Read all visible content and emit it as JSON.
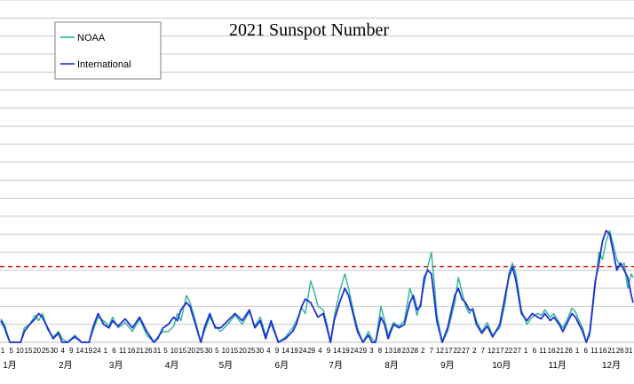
{
  "chart_data": {
    "type": "line",
    "title": "2021 Sunspot Number",
    "xlabel": "",
    "ylabel": "",
    "ylim": [
      0,
      190
    ],
    "reference_line": {
      "value": 42,
      "color": "#e02020",
      "style": "dashed"
    },
    "grid": true,
    "legend_position": "top-left",
    "month_labels": [
      "1月",
      "2月",
      "3月",
      "4月",
      "5月",
      "6月",
      "7月",
      "8月",
      "9月",
      "10月",
      "11月",
      "12月"
    ],
    "month_start_days": [
      1,
      32,
      60,
      91,
      121,
      152,
      182,
      213,
      244,
      274,
      305,
      335
    ],
    "day_tick_labels": [
      "1",
      "5",
      "10",
      "15",
      "20",
      "25",
      "30",
      "4",
      "9",
      "14",
      "19",
      "24",
      "1",
      "6",
      "11",
      "16",
      "21",
      "26",
      "31",
      "5",
      "10",
      "15",
      "20",
      "25",
      "30",
      "5",
      "10",
      "15",
      "20",
      "25",
      "30",
      "4",
      "9",
      "14",
      "19",
      "24",
      "29",
      "4",
      "9",
      "14",
      "19",
      "24",
      "29",
      "3",
      "8",
      "13",
      "18",
      "23",
      "28",
      "2",
      "7",
      "12",
      "17",
      "22",
      "27",
      "2",
      "7",
      "12",
      "17",
      "22",
      "27",
      "1",
      "6",
      "11",
      "16",
      "21",
      "26",
      "1",
      "6",
      "11",
      "16",
      "21",
      "26",
      "31"
    ],
    "series": [
      {
        "name": "NOAA",
        "color": "#2bb39a",
        "points": [
          [
            1,
            13
          ],
          [
            3,
            10
          ],
          [
            6,
            0
          ],
          [
            9,
            0
          ],
          [
            12,
            0
          ],
          [
            14,
            8
          ],
          [
            17,
            10
          ],
          [
            20,
            15
          ],
          [
            22,
            12
          ],
          [
            24,
            16
          ],
          [
            27,
            7
          ],
          [
            30,
            3
          ],
          [
            33,
            6
          ],
          [
            35,
            2
          ],
          [
            38,
            0
          ],
          [
            42,
            4
          ],
          [
            46,
            0
          ],
          [
            50,
            0
          ],
          [
            52,
            6
          ],
          [
            55,
            14
          ],
          [
            58,
            12
          ],
          [
            61,
            9
          ],
          [
            63,
            14
          ],
          [
            66,
            8
          ],
          [
            70,
            11
          ],
          [
            74,
            6
          ],
          [
            78,
            13
          ],
          [
            82,
            4
          ],
          [
            86,
            0
          ],
          [
            88,
            3
          ],
          [
            91,
            6
          ],
          [
            94,
            6
          ],
          [
            97,
            9
          ],
          [
            99,
            16
          ],
          [
            101,
            12
          ],
          [
            104,
            26
          ],
          [
            106,
            22
          ],
          [
            109,
            12
          ],
          [
            112,
            0
          ],
          [
            114,
            6
          ],
          [
            117,
            14
          ],
          [
            120,
            9
          ],
          [
            123,
            6
          ],
          [
            127,
            10
          ],
          [
            131,
            15
          ],
          [
            135,
            10
          ],
          [
            139,
            17
          ],
          [
            142,
            9
          ],
          [
            145,
            14
          ],
          [
            148,
            4
          ],
          [
            151,
            10
          ],
          [
            155,
            0
          ],
          [
            159,
            3
          ],
          [
            163,
            8
          ],
          [
            165,
            12
          ],
          [
            168,
            19
          ],
          [
            170,
            16
          ],
          [
            173,
            34
          ],
          [
            175,
            28
          ],
          [
            177,
            20
          ],
          [
            180,
            18
          ],
          [
            182,
            10
          ],
          [
            184,
            0
          ],
          [
            186,
            14
          ],
          [
            189,
            28
          ],
          [
            192,
            38
          ],
          [
            194,
            30
          ],
          [
            197,
            16
          ],
          [
            199,
            8
          ],
          [
            202,
            0
          ],
          [
            205,
            6
          ],
          [
            207,
            2
          ],
          [
            209,
            0
          ],
          [
            212,
            20
          ],
          [
            214,
            12
          ],
          [
            216,
            4
          ],
          [
            219,
            11
          ],
          [
            222,
            9
          ],
          [
            225,
            12
          ],
          [
            228,
            30
          ],
          [
            230,
            24
          ],
          [
            232,
            15
          ],
          [
            234,
            22
          ],
          [
            236,
            32
          ],
          [
            238,
            42
          ],
          [
            240,
            50
          ],
          [
            241,
            40
          ],
          [
            243,
            16
          ],
          [
            246,
            0
          ],
          [
            249,
            6
          ],
          [
            253,
            22
          ],
          [
            255,
            36
          ],
          [
            257,
            28
          ],
          [
            259,
            20
          ],
          [
            261,
            16
          ],
          [
            263,
            19
          ],
          [
            265,
            12
          ],
          [
            268,
            6
          ],
          [
            271,
            11
          ],
          [
            274,
            4
          ],
          [
            278,
            8
          ],
          [
            281,
            22
          ],
          [
            283,
            38
          ],
          [
            285,
            44
          ],
          [
            287,
            38
          ],
          [
            290,
            18
          ],
          [
            293,
            10
          ],
          [
            296,
            14
          ],
          [
            299,
            16
          ],
          [
            301,
            15
          ],
          [
            303,
            18
          ],
          [
            306,
            14
          ],
          [
            308,
            16
          ],
          [
            311,
            11
          ],
          [
            313,
            8
          ],
          [
            316,
            14
          ],
          [
            318,
            19
          ],
          [
            320,
            17
          ],
          [
            322,
            12
          ],
          [
            324,
            8
          ],
          [
            326,
            0
          ],
          [
            328,
            4
          ],
          [
            331,
            32
          ],
          [
            333,
            50
          ],
          [
            335,
            46
          ],
          [
            337,
            56
          ],
          [
            339,
            62
          ],
          [
            341,
            54
          ],
          [
            343,
            46
          ],
          [
            345,
            42
          ],
          [
            347,
            44
          ],
          [
            349,
            30
          ],
          [
            351,
            38
          ],
          [
            352,
            36
          ]
        ]
      },
      {
        "name": "International",
        "color": "#1c2fd6",
        "points": [
          [
            1,
            12
          ],
          [
            3,
            8
          ],
          [
            6,
            0
          ],
          [
            9,
            0
          ],
          [
            12,
            0
          ],
          [
            14,
            6
          ],
          [
            17,
            10
          ],
          [
            20,
            13
          ],
          [
            22,
            16
          ],
          [
            24,
            14
          ],
          [
            27,
            8
          ],
          [
            30,
            2
          ],
          [
            33,
            5
          ],
          [
            35,
            0
          ],
          [
            38,
            0
          ],
          [
            42,
            3
          ],
          [
            46,
            0
          ],
          [
            50,
            0
          ],
          [
            52,
            8
          ],
          [
            55,
            16
          ],
          [
            58,
            10
          ],
          [
            61,
            8
          ],
          [
            63,
            12
          ],
          [
            66,
            9
          ],
          [
            70,
            13
          ],
          [
            74,
            8
          ],
          [
            78,
            14
          ],
          [
            82,
            6
          ],
          [
            86,
            0
          ],
          [
            88,
            2
          ],
          [
            91,
            8
          ],
          [
            94,
            10
          ],
          [
            97,
            14
          ],
          [
            99,
            12
          ],
          [
            101,
            18
          ],
          [
            104,
            22
          ],
          [
            106,
            20
          ],
          [
            109,
            10
          ],
          [
            112,
            0
          ],
          [
            114,
            8
          ],
          [
            117,
            16
          ],
          [
            120,
            8
          ],
          [
            123,
            8
          ],
          [
            127,
            12
          ],
          [
            131,
            16
          ],
          [
            135,
            12
          ],
          [
            139,
            18
          ],
          [
            142,
            8
          ],
          [
            145,
            12
          ],
          [
            148,
            2
          ],
          [
            151,
            12
          ],
          [
            155,
            0
          ],
          [
            159,
            2
          ],
          [
            163,
            6
          ],
          [
            165,
            10
          ],
          [
            168,
            20
          ],
          [
            170,
            24
          ],
          [
            173,
            22
          ],
          [
            175,
            18
          ],
          [
            177,
            14
          ],
          [
            180,
            16
          ],
          [
            182,
            8
          ],
          [
            184,
            0
          ],
          [
            186,
            12
          ],
          [
            189,
            22
          ],
          [
            192,
            30
          ],
          [
            194,
            26
          ],
          [
            197,
            14
          ],
          [
            199,
            6
          ],
          [
            202,
            0
          ],
          [
            205,
            4
          ],
          [
            207,
            0
          ],
          [
            209,
            0
          ],
          [
            212,
            14
          ],
          [
            214,
            10
          ],
          [
            216,
            2
          ],
          [
            219,
            10
          ],
          [
            222,
            8
          ],
          [
            225,
            10
          ],
          [
            228,
            22
          ],
          [
            230,
            26
          ],
          [
            232,
            18
          ],
          [
            234,
            20
          ],
          [
            236,
            36
          ],
          [
            238,
            40
          ],
          [
            240,
            38
          ],
          [
            241,
            30
          ],
          [
            243,
            12
          ],
          [
            246,
            0
          ],
          [
            249,
            8
          ],
          [
            253,
            26
          ],
          [
            255,
            30
          ],
          [
            257,
            24
          ],
          [
            259,
            22
          ],
          [
            261,
            18
          ],
          [
            263,
            18
          ],
          [
            265,
            10
          ],
          [
            268,
            5
          ],
          [
            271,
            9
          ],
          [
            274,
            3
          ],
          [
            278,
            10
          ],
          [
            281,
            26
          ],
          [
            283,
            36
          ],
          [
            285,
            42
          ],
          [
            287,
            34
          ],
          [
            290,
            16
          ],
          [
            293,
            12
          ],
          [
            296,
            16
          ],
          [
            299,
            14
          ],
          [
            301,
            13
          ],
          [
            303,
            16
          ],
          [
            306,
            12
          ],
          [
            308,
            14
          ],
          [
            311,
            10
          ],
          [
            313,
            6
          ],
          [
            316,
            12
          ],
          [
            318,
            16
          ],
          [
            320,
            14
          ],
          [
            322,
            10
          ],
          [
            324,
            6
          ],
          [
            326,
            0
          ],
          [
            328,
            6
          ],
          [
            331,
            34
          ],
          [
            333,
            44
          ],
          [
            335,
            56
          ],
          [
            337,
            62
          ],
          [
            339,
            60
          ],
          [
            341,
            50
          ],
          [
            343,
            40
          ],
          [
            345,
            44
          ],
          [
            347,
            40
          ],
          [
            349,
            36
          ],
          [
            351,
            26
          ],
          [
            352,
            22
          ]
        ]
      }
    ]
  }
}
